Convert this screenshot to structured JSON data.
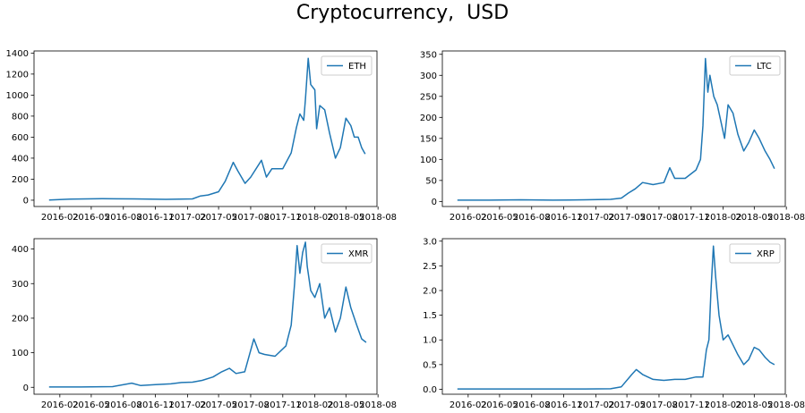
{
  "title": "Cryptocurrency,  USD",
  "colors": {
    "line": "#1f77b4",
    "axis": "#000000",
    "legend_border": "#cccccc"
  },
  "x_tick_labels": [
    "2016-02",
    "2016-05",
    "2016-08",
    "2016-11",
    "2017-02",
    "2017-05",
    "2017-08",
    "2017-11",
    "2018-02",
    "2018-05",
    "2018-08"
  ],
  "chart_data": [
    {
      "type": "line",
      "title": "",
      "legend": "top-right",
      "xlabel": "",
      "ylabel": "",
      "ylim": [
        -60,
        1420
      ],
      "yticks": [
        0,
        200,
        400,
        600,
        800,
        1000,
        1200,
        1400
      ],
      "series": [
        {
          "name": "ETH",
          "x": [
            "2016-01-01",
            "2016-03-01",
            "2016-06-01",
            "2016-09-01",
            "2016-12-01",
            "2017-02-15",
            "2017-03-10",
            "2017-04-01",
            "2017-05-01",
            "2017-05-20",
            "2017-06-12",
            "2017-06-25",
            "2017-07-16",
            "2017-08-01",
            "2017-09-01",
            "2017-09-15",
            "2017-10-01",
            "2017-11-01",
            "2017-11-25",
            "2017-12-10",
            "2017-12-20",
            "2017-12-31",
            "2018-01-05",
            "2018-01-13",
            "2018-01-20",
            "2018-02-01",
            "2018-02-06",
            "2018-02-15",
            "2018-03-01",
            "2018-03-15",
            "2018-04-01",
            "2018-04-15",
            "2018-05-01",
            "2018-05-15",
            "2018-05-25",
            "2018-06-05",
            "2018-06-15",
            "2018-06-25"
          ],
          "values": [
            1,
            10,
            14,
            12,
            8,
            12,
            40,
            50,
            80,
            180,
            360,
            280,
            160,
            220,
            380,
            220,
            300,
            300,
            450,
            690,
            820,
            760,
            960,
            1350,
            1100,
            1050,
            680,
            900,
            860,
            640,
            400,
            500,
            780,
            710,
            600,
            600,
            500,
            440
          ]
        }
      ]
    },
    {
      "type": "line",
      "title": "",
      "legend": "top-right",
      "xlabel": "",
      "ylabel": "",
      "ylim": [
        -12,
        358
      ],
      "yticks": [
        0,
        50,
        100,
        150,
        200,
        250,
        300,
        350
      ],
      "series": [
        {
          "name": "LTC",
          "x": [
            "2016-01-01",
            "2016-04-01",
            "2016-07-01",
            "2016-10-01",
            "2017-01-01",
            "2017-03-15",
            "2017-04-15",
            "2017-05-05",
            "2017-05-25",
            "2017-06-15",
            "2017-07-15",
            "2017-08-15",
            "2017-09-01",
            "2017-09-15",
            "2017-10-15",
            "2017-11-15",
            "2017-11-28",
            "2017-12-05",
            "2017-12-12",
            "2017-12-19",
            "2017-12-25",
            "2018-01-05",
            "2018-01-15",
            "2018-02-05",
            "2018-02-15",
            "2018-03-01",
            "2018-03-15",
            "2018-04-01",
            "2018-04-15",
            "2018-05-01",
            "2018-05-15",
            "2018-06-01",
            "2018-06-15",
            "2018-06-28"
          ],
          "values": [
            3,
            3,
            4,
            3,
            4,
            5,
            8,
            20,
            30,
            45,
            40,
            45,
            80,
            55,
            55,
            75,
            100,
            180,
            340,
            260,
            300,
            250,
            230,
            150,
            230,
            210,
            160,
            120,
            140,
            170,
            150,
            120,
            100,
            78
          ]
        }
      ]
    },
    {
      "type": "line",
      "title": "",
      "legend": "top-right",
      "xlabel": "",
      "ylabel": "",
      "ylim": [
        -20,
        430
      ],
      "yticks": [
        0,
        100,
        200,
        300,
        400
      ],
      "series": [
        {
          "name": "XMR",
          "x": [
            "2016-01-01",
            "2016-04-01",
            "2016-07-01",
            "2016-08-25",
            "2016-09-20",
            "2016-11-01",
            "2016-12-15",
            "2017-01-15",
            "2017-02-15",
            "2017-03-15",
            "2017-04-15",
            "2017-05-10",
            "2017-06-01",
            "2017-06-20",
            "2017-07-15",
            "2017-08-10",
            "2017-08-25",
            "2017-09-10",
            "2017-10-10",
            "2017-11-10",
            "2017-11-25",
            "2017-12-05",
            "2017-12-12",
            "2017-12-20",
            "2017-12-28",
            "2018-01-05",
            "2018-01-10",
            "2018-01-20",
            "2018-02-01",
            "2018-02-15",
            "2018-03-01",
            "2018-03-15",
            "2018-04-01",
            "2018-04-15",
            "2018-05-01",
            "2018-05-15",
            "2018-06-01",
            "2018-06-15",
            "2018-06-28"
          ],
          "values": [
            1,
            1,
            2,
            12,
            5,
            8,
            10,
            14,
            15,
            20,
            30,
            45,
            55,
            40,
            45,
            140,
            100,
            95,
            90,
            120,
            180,
            300,
            410,
            330,
            390,
            420,
            350,
            280,
            260,
            300,
            200,
            230,
            160,
            200,
            290,
            230,
            180,
            140,
            130
          ]
        }
      ]
    },
    {
      "type": "line",
      "title": "",
      "legend": "top-right",
      "xlabel": "",
      "ylabel": "",
      "ylim": [
        -0.1,
        3.05
      ],
      "yticks": [
        0.0,
        0.5,
        1.0,
        1.5,
        2.0,
        2.5,
        3.0
      ],
      "series": [
        {
          "name": "XRP",
          "x": [
            "2016-01-01",
            "2016-07-01",
            "2017-01-01",
            "2017-03-15",
            "2017-04-15",
            "2017-05-15",
            "2017-05-28",
            "2017-06-15",
            "2017-07-15",
            "2017-08-15",
            "2017-09-15",
            "2017-10-15",
            "2017-11-15",
            "2017-12-05",
            "2017-12-15",
            "2017-12-22",
            "2017-12-28",
            "2018-01-04",
            "2018-01-10",
            "2018-01-20",
            "2018-02-01",
            "2018-02-15",
            "2018-03-01",
            "2018-03-15",
            "2018-04-01",
            "2018-04-15",
            "2018-05-01",
            "2018-05-15",
            "2018-06-01",
            "2018-06-15",
            "2018-06-28"
          ],
          "values": [
            0.006,
            0.006,
            0.007,
            0.01,
            0.05,
            0.3,
            0.4,
            0.3,
            0.2,
            0.18,
            0.2,
            0.2,
            0.25,
            0.25,
            0.8,
            1.0,
            2.0,
            2.9,
            2.3,
            1.5,
            1.0,
            1.1,
            0.9,
            0.7,
            0.5,
            0.6,
            0.85,
            0.8,
            0.65,
            0.55,
            0.5
          ]
        }
      ]
    }
  ]
}
